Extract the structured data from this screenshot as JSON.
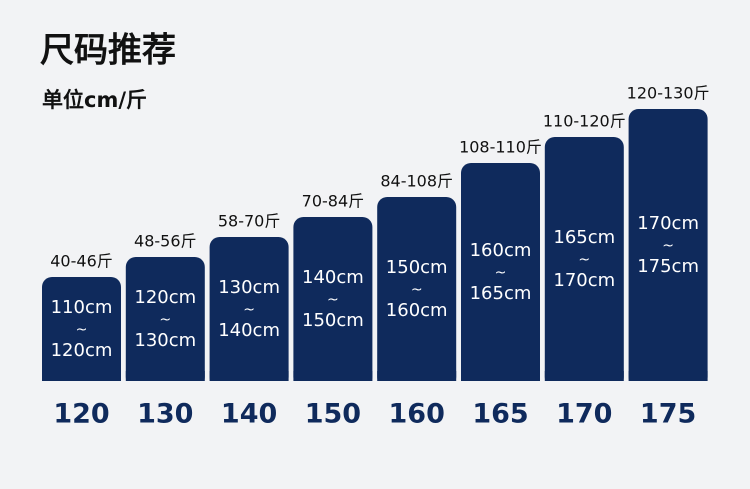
{
  "header": {
    "title": "尺码推荐",
    "unit": "单位cm/斤"
  },
  "sizes": [
    {
      "size": "120",
      "weight": "40-46斤",
      "height_from": "110cm",
      "separator": "~",
      "height_to": "120cm"
    },
    {
      "size": "130",
      "weight": "48-56斤",
      "height_from": "120cm",
      "separator": "~",
      "height_to": "130cm"
    },
    {
      "size": "140",
      "weight": "58-70斤",
      "height_from": "130cm",
      "separator": "~",
      "height_to": "140cm"
    },
    {
      "size": "150",
      "weight": "70-84斤",
      "height_from": "140cm",
      "separator": "~",
      "height_to": "150cm"
    },
    {
      "size": "160",
      "weight": "84-108斤",
      "height_from": "150cm",
      "separator": "~",
      "height_to": "160cm"
    },
    {
      "size": "165",
      "weight": "108-110斤",
      "height_from": "160cm",
      "separator": "~",
      "height_to": "165cm"
    },
    {
      "size": "170",
      "weight": "110-120斤",
      "height_from": "165cm",
      "separator": "~",
      "height_to": "170cm"
    },
    {
      "size": "175",
      "weight": "120-130斤",
      "height_from": "170cm",
      "separator": "~",
      "height_to": "175cm"
    }
  ]
}
